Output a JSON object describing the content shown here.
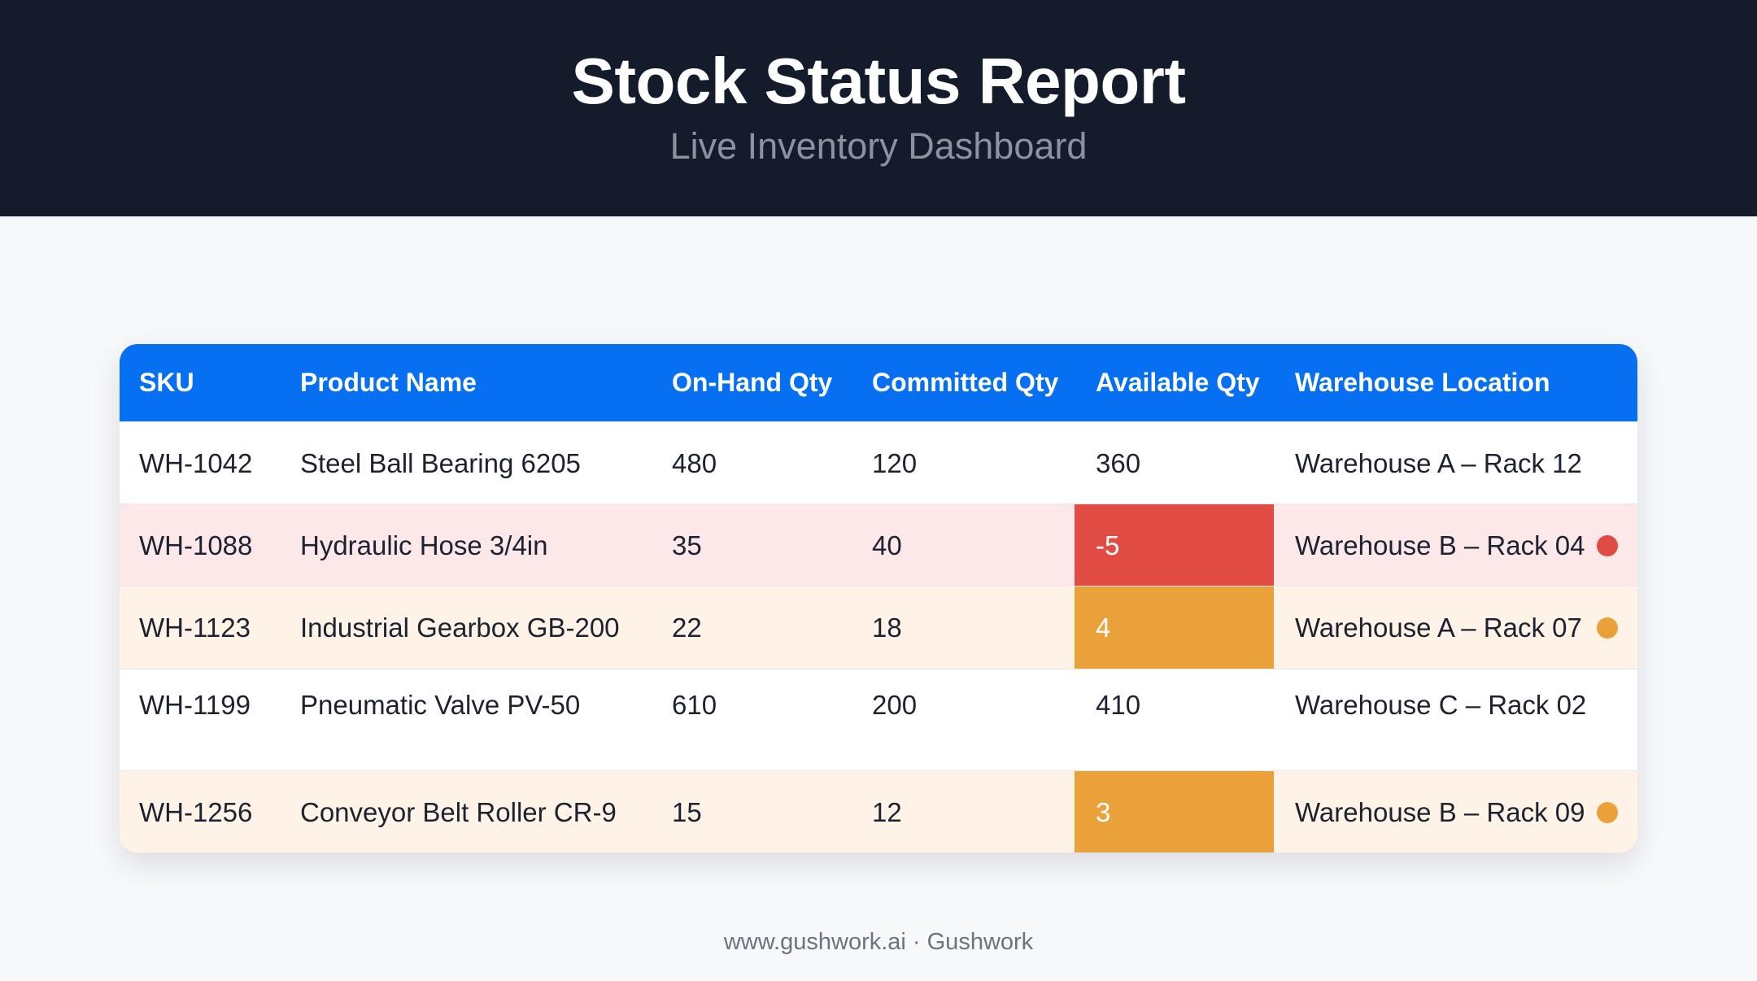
{
  "header": {
    "title": "Stock Status Report",
    "subtitle": "Live Inventory Dashboard"
  },
  "table": {
    "columns": [
      "SKU",
      "Product Name",
      "On-Hand Qty",
      "Committed Qty",
      "Available Qty",
      "Warehouse Location"
    ],
    "rows": [
      {
        "sku": "WH-1042",
        "product": "Steel Ball Bearing 6205",
        "on_hand": "480",
        "committed": "120",
        "available": "360",
        "location": "Warehouse A – Rack 12",
        "status": "normal"
      },
      {
        "sku": "WH-1088",
        "product": "Hydraulic Hose 3/4in",
        "on_hand": "35",
        "committed": "40",
        "available": "-5",
        "location": "Warehouse B – Rack 04",
        "status": "critical"
      },
      {
        "sku": "WH-1123",
        "product": "Industrial Gearbox GB-200",
        "on_hand": "22",
        "committed": "18",
        "available": "4",
        "location": "Warehouse A – Rack 07",
        "status": "warning"
      },
      {
        "sku": "WH-1199",
        "product": "Pneumatic Valve PV-50",
        "on_hand": "610",
        "committed": "200",
        "available": "410",
        "location": "Warehouse C – Rack 02",
        "status": "normal"
      },
      {
        "sku": "WH-1256",
        "product": "Conveyor Belt Roller CR-9",
        "on_hand": "15",
        "committed": "12",
        "available": "3",
        "location": "Warehouse B – Rack 09",
        "status": "warning"
      }
    ]
  },
  "colors": {
    "header_bg": "#141c2b",
    "table_header_bg": "#0770f2",
    "critical": "#e04c43",
    "warning": "#eba13a",
    "critical_row_bg": "#fce7e9",
    "warning_row_bg": "#fef3e6"
  },
  "icons": {
    "status_dot": "status-dot-icon"
  },
  "footer": {
    "text": "www.gushwork.ai · Gushwork"
  }
}
